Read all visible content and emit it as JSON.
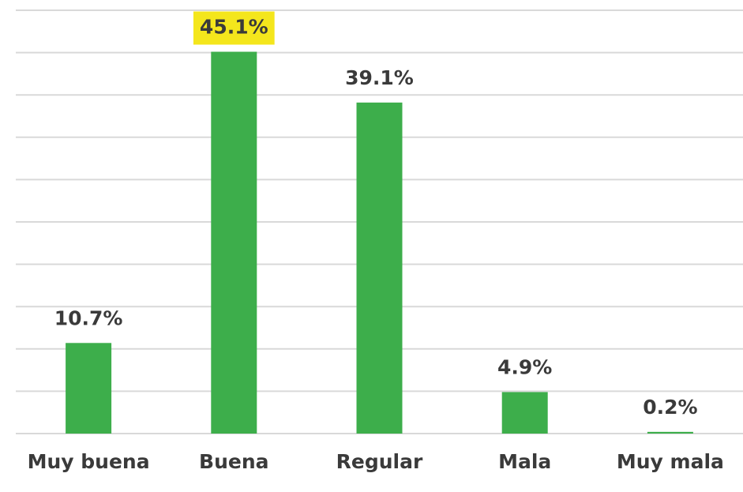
{
  "chart_data": {
    "type": "bar",
    "categories": [
      "Muy buena",
      "Buena",
      "Regular",
      "Mala",
      "Muy mala"
    ],
    "values": [
      10.7,
      45.1,
      39.1,
      4.9,
      0.2
    ],
    "value_labels": [
      "10.7%",
      "45.1%",
      "39.1%",
      "4.9%",
      "0.2%"
    ],
    "value_label_backgrounds": [
      null,
      "#f4e61c",
      null,
      null,
      null
    ],
    "color": "#3dae4b",
    "ylim": [
      0,
      50
    ],
    "yticks": [
      0,
      5,
      10,
      15,
      20,
      25,
      30,
      35,
      40,
      45,
      50
    ],
    "grid": true
  }
}
